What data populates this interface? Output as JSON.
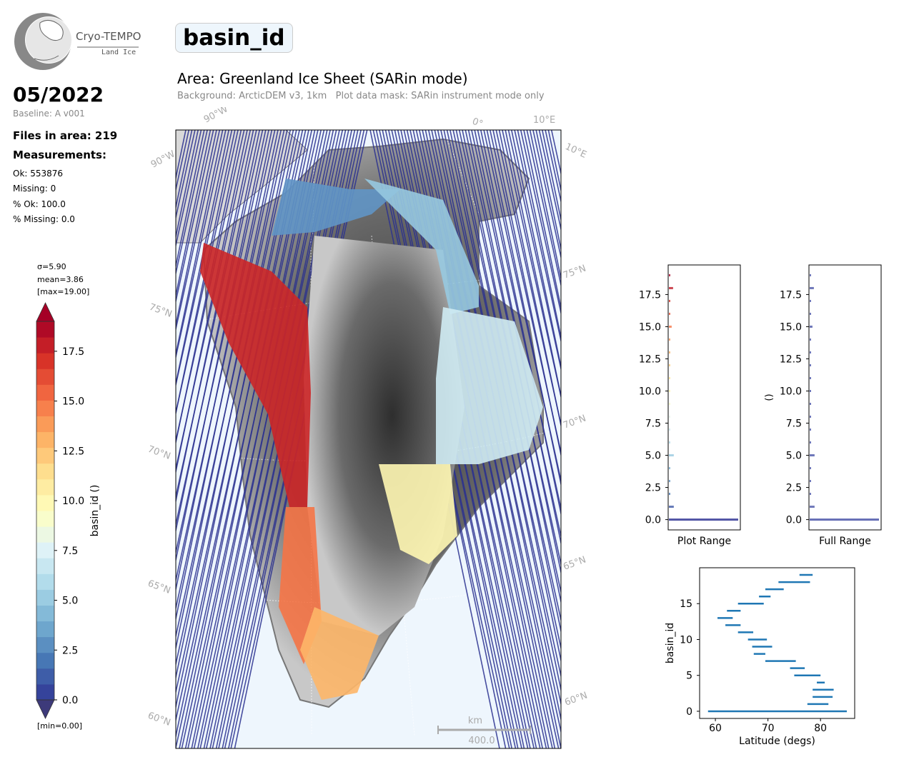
{
  "logo": {
    "line1": "Cryo-TEMPO",
    "line2": "Land Ice"
  },
  "date": "05/2022",
  "baseline": "Baseline: A v001",
  "files_in_area": "Files in area: 219",
  "measurements_heading": "Measurements:",
  "stats": {
    "ok": "Ok: 553876",
    "missing": "Missing: 0",
    "pct_ok": "% Ok: 100.0",
    "pct_missing": "% Missing: 0.0"
  },
  "parameter": "basin_id",
  "area_title": "Area: Greenland Ice Sheet (SARin mode)",
  "background_note": "Background: ArcticDEM v3, 1km   Plot data mask: SARin instrument mode only",
  "colorbar": {
    "sigma": "σ=5.90",
    "mean": "mean=3.86",
    "max": "[max=19.00]",
    "min": "[min=0.00]",
    "label": "basin_id ()",
    "ticks": [
      "0.0",
      "2.5",
      "5.0",
      "7.5",
      "10.0",
      "12.5",
      "15.0",
      "17.5"
    ],
    "range": [
      0,
      19
    ],
    "colormap": "RdYlBu_r"
  },
  "map_labels": {
    "lon": [
      "90°W",
      "90°W",
      "0°",
      "10°E",
      "10°E"
    ],
    "lat_left": [
      "75°N",
      "70°N",
      "65°N",
      "60°N"
    ],
    "lat_right": [
      "75°N",
      "70°N",
      "65°N",
      "60°N"
    ],
    "scalebar_unit": "km",
    "scalebar_value": "400.0"
  },
  "colors": {
    "track_outside": "#2b3190",
    "map_ocean": "#eef6fd",
    "hist_line": "#4a55a8",
    "scatter_color": "#1f77b4",
    "axis_grey": "#aaaaaa"
  },
  "chart_data": [
    {
      "type": "bar",
      "orientation": "horizontal",
      "xlabel": "Plot Range",
      "ylabel": "",
      "yticks": [
        "0.0",
        "2.5",
        "5.0",
        "7.5",
        "10.0",
        "12.5",
        "15.0",
        "17.5"
      ],
      "ylim": [
        -0.8,
        19.8
      ],
      "categories": [
        0,
        1,
        2,
        3,
        4,
        5,
        6,
        7,
        8,
        9,
        10,
        11,
        12,
        13,
        14,
        15,
        16,
        17,
        18,
        19
      ],
      "values": [
        0.99,
        0.07,
        0.02,
        0.02,
        0.02,
        0.07,
        0.02,
        0.02,
        0.01,
        0.01,
        0.01,
        0.01,
        0.01,
        0.02,
        0.02,
        0.04,
        0.01,
        0.02,
        0.06,
        0.02
      ]
    },
    {
      "type": "bar",
      "orientation": "horizontal",
      "xlabel": "Full Range",
      "ylabel": "()",
      "yticks": [
        "0.0",
        "2.5",
        "5.0",
        "7.5",
        "10.0",
        "12.5",
        "15.0",
        "17.5"
      ],
      "ylim": [
        -0.8,
        19.8
      ],
      "categories": [
        0,
        1,
        2,
        3,
        4,
        5,
        6,
        7,
        8,
        9,
        10,
        11,
        12,
        13,
        14,
        15,
        16,
        17,
        18,
        19
      ],
      "values": [
        0.99,
        0.07,
        0.02,
        0.02,
        0.02,
        0.07,
        0.02,
        0.02,
        0.01,
        0.01,
        0.01,
        0.01,
        0.01,
        0.02,
        0.02,
        0.04,
        0.01,
        0.02,
        0.06,
        0.02
      ]
    },
    {
      "type": "scatter",
      "xlabel": "Latitude (degs)",
      "ylabel": "basin_id",
      "xticks": [
        "60",
        "70",
        "80"
      ],
      "yticks": [
        "0",
        "5",
        "10",
        "15"
      ],
      "xlim": [
        57,
        86.5
      ],
      "ylim": [
        -1,
        20
      ],
      "ranges": [
        {
          "basin": 0,
          "lat_min": 58.6,
          "lat_max": 85.0
        },
        {
          "basin": 1,
          "lat_min": 77.5,
          "lat_max": 81.5
        },
        {
          "basin": 2,
          "lat_min": 78.5,
          "lat_max": 82.3
        },
        {
          "basin": 3,
          "lat_min": 78.5,
          "lat_max": 82.5
        },
        {
          "basin": 4,
          "lat_min": 79.3,
          "lat_max": 80.8
        },
        {
          "basin": 5,
          "lat_min": 75.0,
          "lat_max": 80.0
        },
        {
          "basin": 6,
          "lat_min": 74.2,
          "lat_max": 77.0
        },
        {
          "basin": 7,
          "lat_min": 69.5,
          "lat_max": 75.3
        },
        {
          "basin": 8,
          "lat_min": 67.3,
          "lat_max": 69.5
        },
        {
          "basin": 9,
          "lat_min": 67.0,
          "lat_max": 70.8
        },
        {
          "basin": 10,
          "lat_min": 66.2,
          "lat_max": 69.8
        },
        {
          "basin": 11,
          "lat_min": 64.3,
          "lat_max": 67.2
        },
        {
          "basin": 12,
          "lat_min": 61.9,
          "lat_max": 64.8
        },
        {
          "basin": 13,
          "lat_min": 60.4,
          "lat_max": 63.3
        },
        {
          "basin": 14,
          "lat_min": 62.2,
          "lat_max": 64.8
        },
        {
          "basin": 15,
          "lat_min": 64.3,
          "lat_max": 69.2
        },
        {
          "basin": 16,
          "lat_min": 68.3,
          "lat_max": 70.5
        },
        {
          "basin": 17,
          "lat_min": 69.5,
          "lat_max": 73.0
        },
        {
          "basin": 18,
          "lat_min": 72.0,
          "lat_max": 78.0
        },
        {
          "basin": 19,
          "lat_min": 76.0,
          "lat_max": 78.5
        }
      ]
    }
  ]
}
